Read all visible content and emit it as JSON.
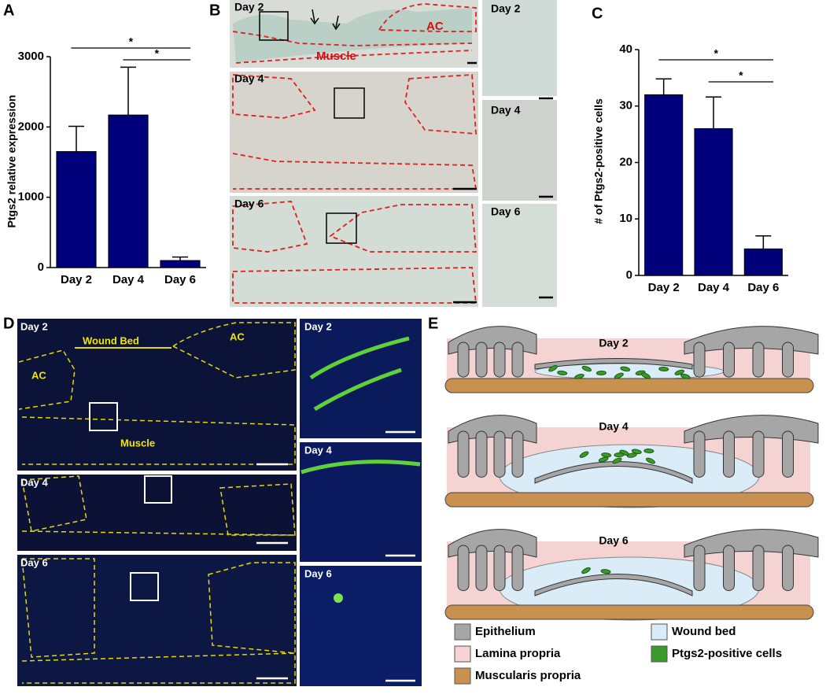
{
  "chart_data": [
    {
      "type": "bar",
      "ylabel": "Ptgs2 relative expression",
      "categories": [
        "Day 2",
        "Day 4",
        "Day 6"
      ],
      "values": [
        1650,
        2170,
        100
      ],
      "errors": [
        360,
        680,
        50
      ],
      "color": "#00007a",
      "ylim": [
        0,
        3000
      ],
      "yticks": [
        0,
        1000,
        2000,
        3000
      ],
      "significance": [
        {
          "from": "Day 2",
          "to": "Day 6",
          "label": "*"
        },
        {
          "from": "Day 4",
          "to": "Day 6",
          "label": "*"
        }
      ]
    },
    {
      "type": "bar",
      "ylabel": "# of Ptgs2-positive cells",
      "categories": [
        "Day 2",
        "Day 4",
        "Day 6"
      ],
      "values": [
        32,
        26,
        4.7
      ],
      "errors": [
        2.8,
        5.6,
        2.3
      ],
      "color": "#00007a",
      "ylim": [
        0,
        40
      ],
      "yticks": [
        0,
        10,
        20,
        30,
        40
      ],
      "significance": [
        {
          "from": "Day 2",
          "to": "Day 6",
          "label": "*"
        },
        {
          "from": "Day 4",
          "to": "Day 6",
          "label": "*"
        }
      ]
    }
  ],
  "panel_labels": [
    "A",
    "B",
    "C",
    "D",
    "E"
  ],
  "panel_B": {
    "main": [
      "Day 2",
      "Day 4",
      "Day 6"
    ],
    "insets": [
      "Day 2",
      "Day 4",
      "Day 6"
    ],
    "annotations": [
      "AC",
      "Muscle"
    ]
  },
  "panel_D": {
    "main": [
      "Day 2",
      "Day 4",
      "Day 6"
    ],
    "insets": [
      "Day 2",
      "Day 4",
      "Day 6"
    ],
    "annotations": [
      "Wound Bed",
      "AC",
      "AC",
      "Muscle"
    ]
  },
  "panel_E": {
    "diagrams": [
      "Day 2",
      "Day 4",
      "Day 6"
    ],
    "legend": [
      {
        "label": "Epithelium",
        "color": "#a6a6a6"
      },
      {
        "label": "Wound bed",
        "color": "#d9ecf7"
      },
      {
        "label": "Lamina propria",
        "color": "#f6d3d3"
      },
      {
        "label": "Ptgs2-positive cells",
        "color": "#3a9a2a"
      },
      {
        "label": "Muscularis propria",
        "color": "#c89150"
      }
    ]
  }
}
